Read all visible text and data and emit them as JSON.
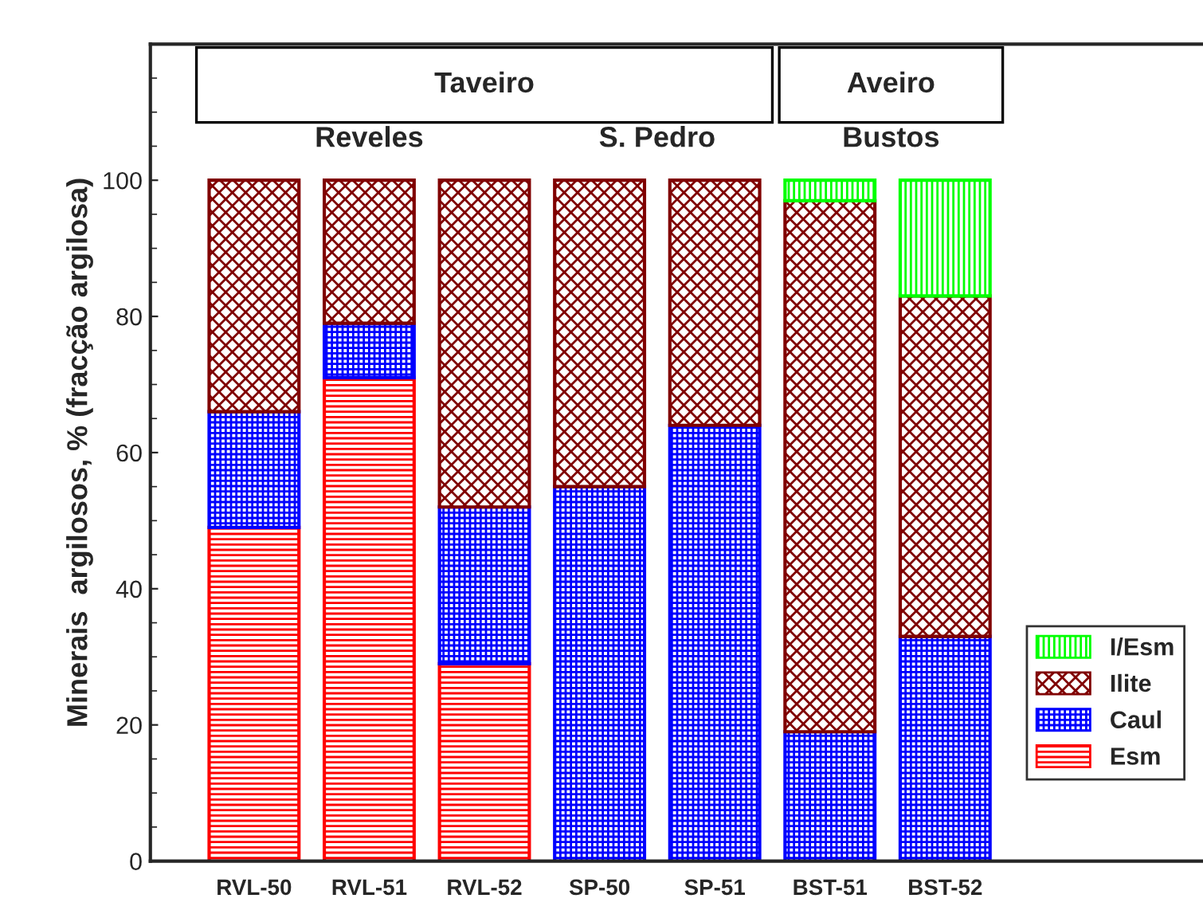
{
  "chart_data": {
    "type": "bar",
    "stacked": true,
    "ylabel": "Minerais  argilosos, % (fracção argilosa)",
    "categories": [
      "RVL-50",
      "RVL-51",
      "RVL-52",
      "SP-50",
      "SP-51",
      "BST-51",
      "BST-52"
    ],
    "series": [
      {
        "name": "Esm",
        "color": "#ff0000",
        "values": [
          49,
          71,
          29,
          0,
          0,
          0,
          0
        ]
      },
      {
        "name": "Caul",
        "color": "#0000ff",
        "values": [
          17,
          8,
          23,
          55,
          64,
          19,
          33
        ]
      },
      {
        "name": "Ilite",
        "color": "#800000",
        "values": [
          34,
          21,
          48,
          45,
          36,
          78,
          50
        ]
      },
      {
        "name": "I/Esm",
        "color": "#00ff00",
        "values": [
          0,
          0,
          0,
          0,
          0,
          3,
          17
        ]
      }
    ],
    "ylim": [
      0,
      120
    ],
    "yticks": [
      0,
      20,
      40,
      60,
      80,
      100
    ],
    "annotations": [
      "Taveiro",
      "Aveiro",
      "Reveles",
      "S. Pedro",
      "Bustos"
    ],
    "legend": "lower right",
    "grid": false
  }
}
